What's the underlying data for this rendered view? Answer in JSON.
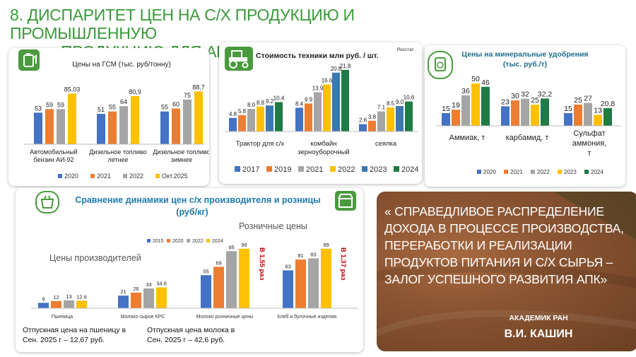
{
  "slide": {
    "title_line1": "8. ДИСПАРИТЕТ ЦЕН НА С/Х ПРОДУКЦИЮ  И ПРОМЫШЛЕННУЮ",
    "title_line2": "ПРОДУКЦИЮ ДЛЯ АПК"
  },
  "colors": {
    "title_green": "#3a9a3a",
    "blue": "#4472c4",
    "orange": "#ed7d31",
    "gray": "#a5a5a5",
    "yellow": "#ffc000",
    "teal": "#3b78b0",
    "dark_green": "#1e7b45",
    "red_text": "#c00000"
  },
  "icons": {
    "fuel": "fuel-canister-icon",
    "tractor": "tractor-icon",
    "fertilizer": "fertilizer-bag-icon",
    "store": "store-basket-icon"
  },
  "chart_data": [
    {
      "id": "fuel",
      "type": "bar",
      "title": "Цены на ГСМ (тыс. руб/тонну)",
      "categories": [
        "Автомобильный бензин АИ-92",
        "Дизельное топливо летнее",
        "Дизельное топливо зимнее"
      ],
      "series": [
        {
          "name": "2020",
          "values": [
            53,
            51,
            55
          ]
        },
        {
          "name": "2021",
          "values": [
            59,
            55,
            60
          ]
        },
        {
          "name": "2022",
          "values": [
            59,
            64,
            75
          ]
        },
        {
          "name": "Окт.2025",
          "values": [
            85.03,
            80.9,
            88.7
          ]
        }
      ],
      "value_labels": [
        [
          "53",
          "51",
          "55"
        ],
        [
          "59",
          "55",
          "60"
        ],
        [
          "59",
          "64",
          "75"
        ],
        [
          "85,03",
          "80,9",
          "88,7"
        ]
      ],
      "legend_position": "bottom"
    },
    {
      "id": "machinery",
      "type": "bar",
      "title": "Стоимость техники млн руб. / шт.",
      "source_note": "Росстат",
      "categories": [
        "Трактор для с/х",
        "комбайн зерноуборочный",
        "сеялка"
      ],
      "series": [
        {
          "name": "2017",
          "values": [
            4.8,
            8.4,
            2.6
          ]
        },
        {
          "name": "2019",
          "values": [
            5.8,
            9.9,
            3.8
          ]
        },
        {
          "name": "2021",
          "values": [
            8.0,
            13.9,
            7.1
          ]
        },
        {
          "name": "2022",
          "values": [
            8.8,
            16.6,
            8.5
          ]
        },
        {
          "name": "2023",
          "values": [
            9.2,
            20.8,
            9.0
          ]
        },
        {
          "name": "2024",
          "values": [
            10.4,
            21.8,
            10.6
          ]
        }
      ],
      "value_labels": [
        [
          "4.8",
          "8.4",
          "2.6"
        ],
        [
          "5.8",
          "9.9",
          "3.8"
        ],
        [
          "8.0",
          "13.9",
          "7.1"
        ],
        [
          "8.8",
          "16.6",
          "8.5"
        ],
        [
          "9.2",
          "20.8",
          "9.0"
        ],
        [
          "10.4",
          "21,8",
          "10,6"
        ]
      ],
      "legend_position": "bottom"
    },
    {
      "id": "fertilizer",
      "type": "bar",
      "title": "Цены на минеральные удобрения (тыс. руб./т)",
      "categories": [
        "Аммиак, т",
        "карбамид, т",
        "Сульфат аммония, т"
      ],
      "series": [
        {
          "name": "2020",
          "values": [
            15,
            23,
            15
          ]
        },
        {
          "name": "2021",
          "values": [
            19,
            30,
            25
          ]
        },
        {
          "name": "2022",
          "values": [
            36,
            32,
            27
          ]
        },
        {
          "name": "2023",
          "values": [
            50,
            25,
            13
          ]
        },
        {
          "name": "2024",
          "values": [
            46,
            32.2,
            20.8
          ]
        }
      ],
      "value_labels": [
        [
          "15",
          "23",
          "15"
        ],
        [
          "19",
          "30",
          "25"
        ],
        [
          "36",
          "32",
          "27"
        ],
        [
          "50",
          "25",
          "13"
        ],
        [
          "46",
          "32,2",
          "20,8"
        ]
      ],
      "legend_position": "bottom"
    },
    {
      "id": "retail",
      "type": "bar",
      "title": "Сравнение динамики цен с/х производителя и розницы (руб/кг)",
      "categories": [
        "Пшеница",
        "Молоко сырое КРС",
        "Молоко розничные цены",
        "Хлеб и булочные изделия"
      ],
      "series": [
        {
          "name": "2015",
          "values": [
            9,
            21,
            55,
            63
          ]
        },
        {
          "name": "2020",
          "values": [
            12,
            26,
            69,
            81
          ]
        },
        {
          "name": "2022",
          "values": [
            13,
            33,
            95,
            83
          ]
        },
        {
          "name": "2024",
          "values": [
            12.6,
            34.6,
            99,
            99
          ]
        }
      ],
      "value_labels": [
        [
          "9",
          "21",
          "55",
          "63"
        ],
        [
          "12",
          "26",
          "69",
          "81"
        ],
        [
          "13",
          "33",
          "95",
          "83"
        ],
        [
          "12.6",
          "34.6",
          "99",
          "99"
        ]
      ],
      "group_labels": {
        "producer": "Цены производителей",
        "retail": "Розничные цены"
      },
      "annotations": [
        "В 1,55 раз",
        "В 1,37 раз"
      ],
      "legend_position": "top"
    }
  ],
  "notes": {
    "wheat_line1": "Отпускная цена на пшеницу в",
    "wheat_line2": "Сен. 2025 г – 12,67 руб.",
    "milk_line1": "Отпускная цена молока в",
    "milk_line2": "Сен. 2025 г – 42,6 руб."
  },
  "quote": {
    "text": "« СПРАВЕДЛИВОЕ РАСПРЕДЕЛЕНИЕ ДОХОДА В ПРОЦЕССЕ ПРОИЗВОДСТВА, ПЕРЕРАБОТКИ И РЕАЛИЗАЦИИ ПРОДУКТОВ ПИТАНИЯ И С/Х СЫРЬЯ – ЗАЛОГ УСПЕШНОГО РАЗВИТИЯ АПК»",
    "author_title": "АКАДЕМИК РАН",
    "author_name": "В.И. КАШИН"
  }
}
